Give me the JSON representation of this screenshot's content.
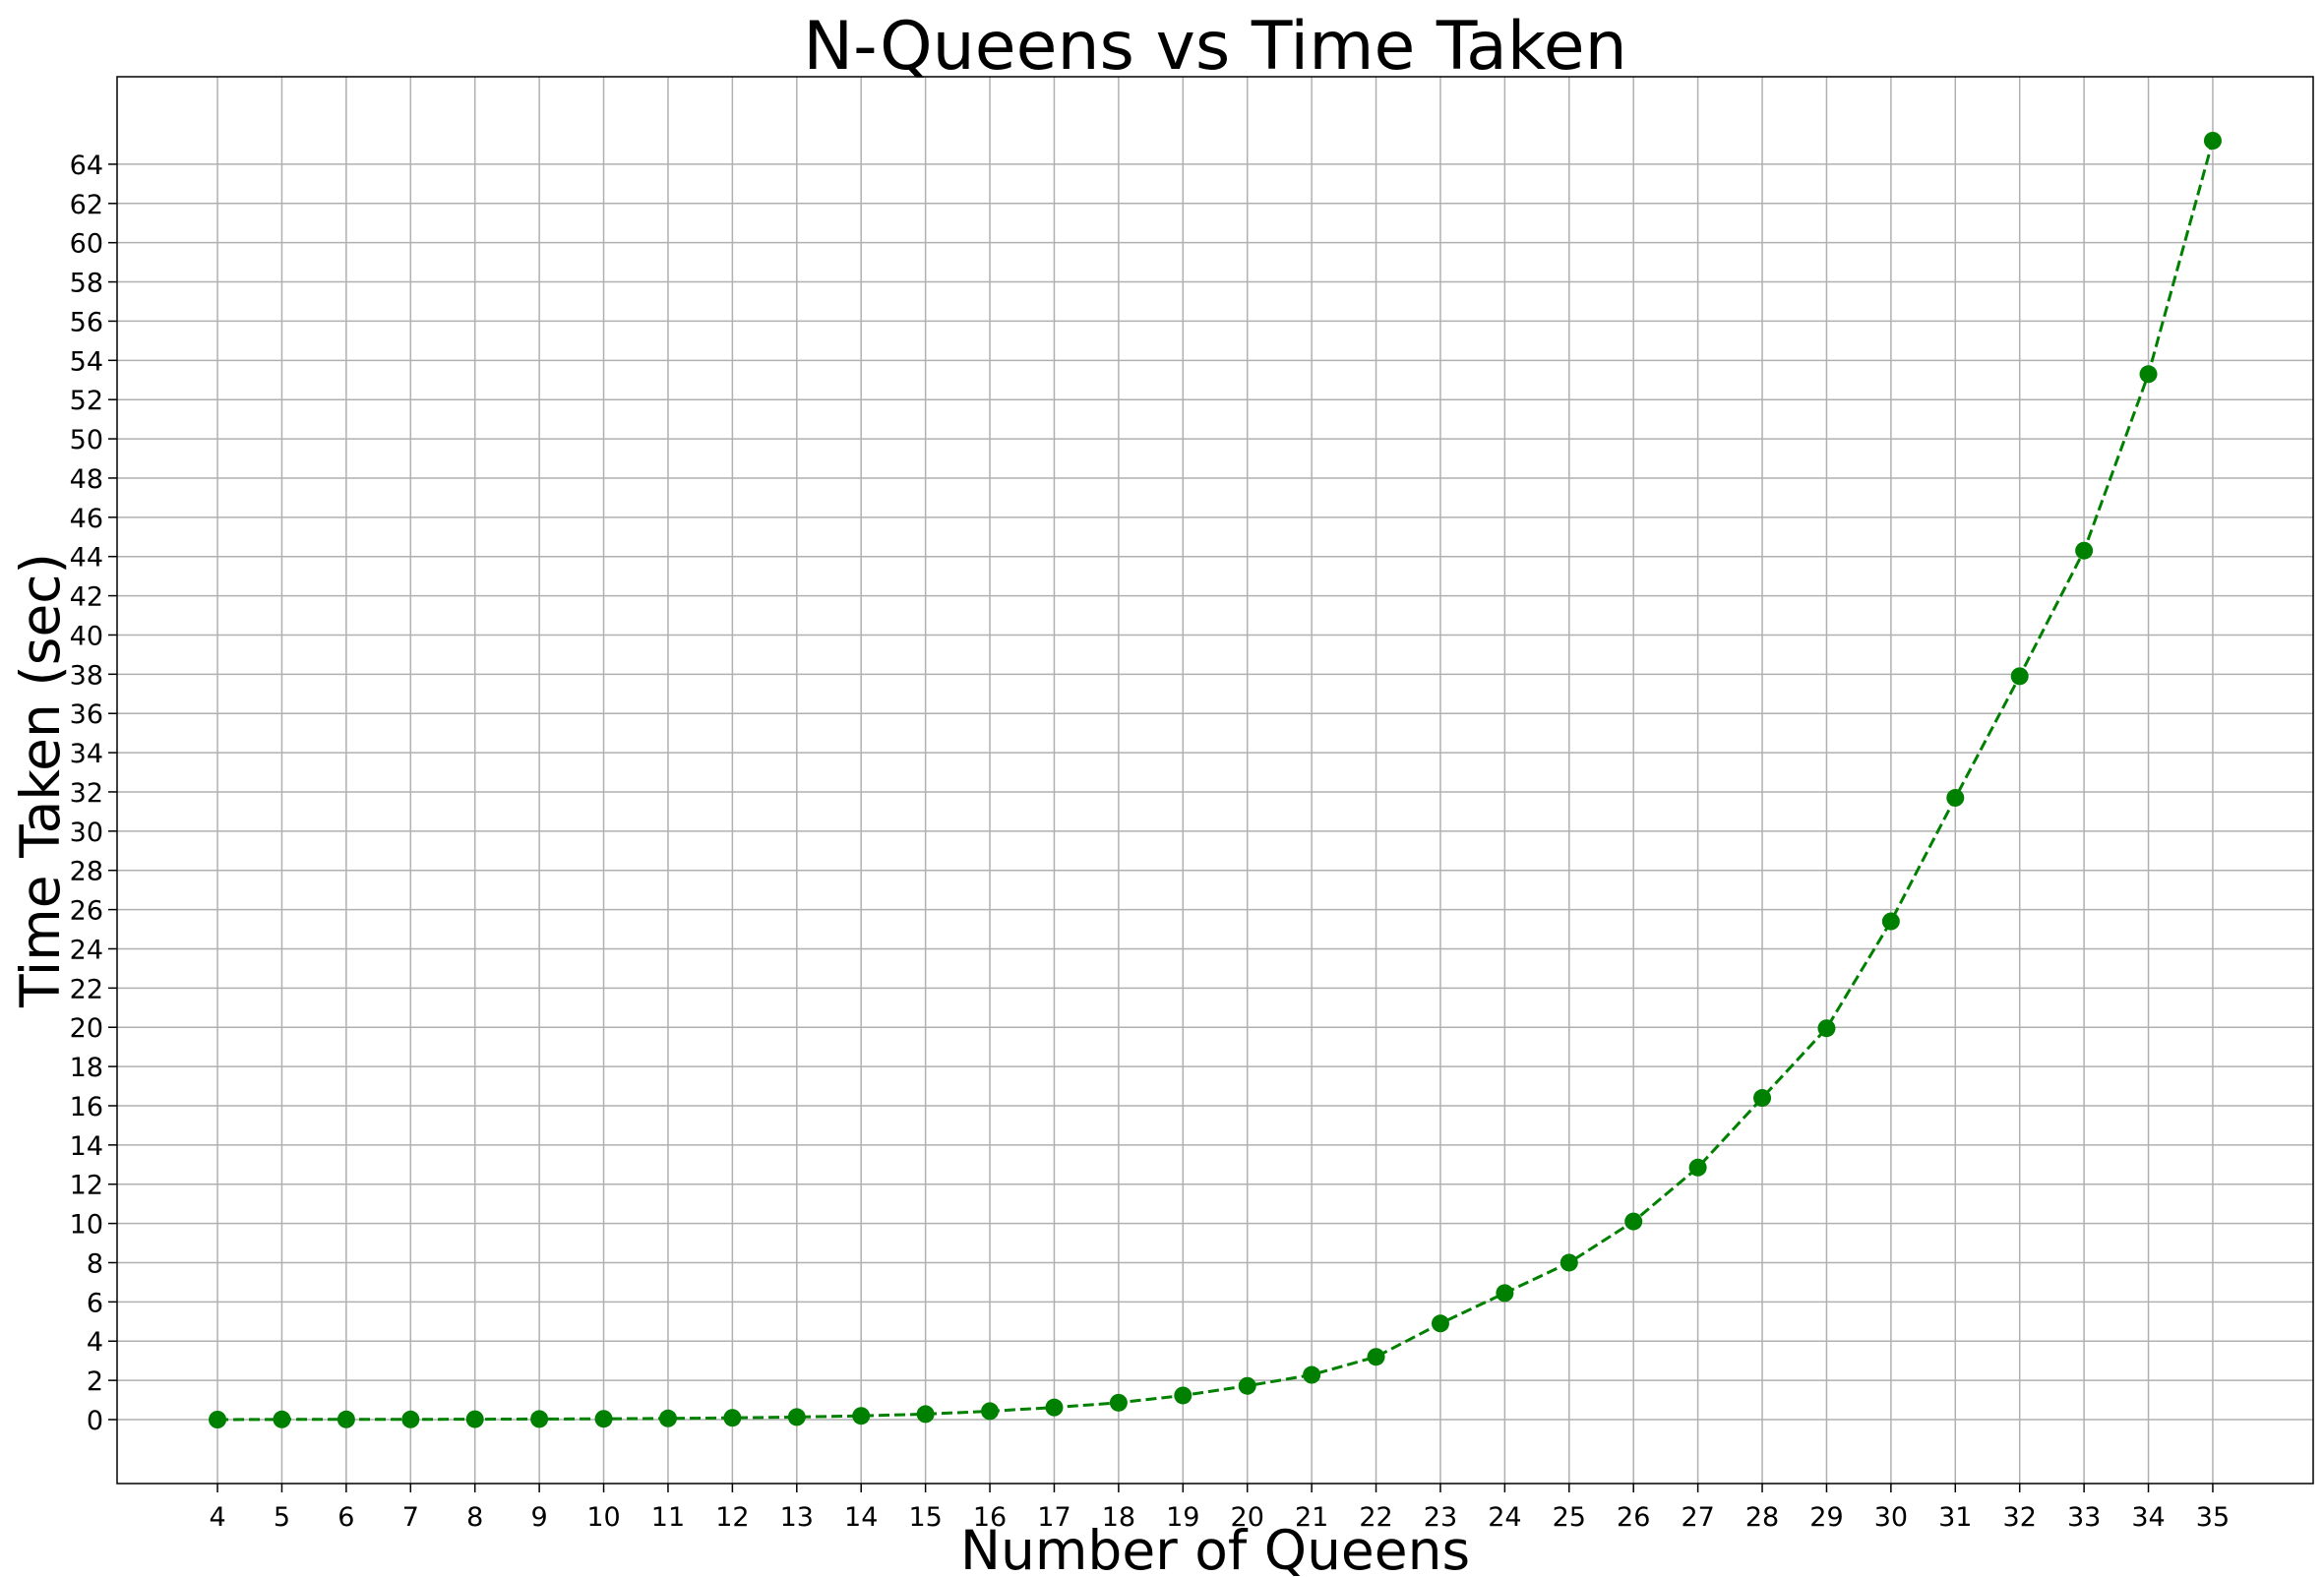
{
  "chart_data": {
    "type": "line",
    "title": "N-Queens vs Time Taken",
    "xlabel": "Number of Queens",
    "ylabel": "Time Taken (sec)",
    "x": [
      4,
      5,
      6,
      7,
      8,
      9,
      10,
      11,
      12,
      13,
      14,
      15,
      16,
      17,
      18,
      19,
      20,
      21,
      22,
      23,
      24,
      25,
      26,
      27,
      28,
      29,
      30,
      31,
      32,
      33,
      34,
      35
    ],
    "series": [
      {
        "values": [
          0,
          0.01,
          0.01,
          0.01,
          0.02,
          0.03,
          0.04,
          0.06,
          0.09,
          0.13,
          0.19,
          0.28,
          0.43,
          0.62,
          0.86,
          1.23,
          1.72,
          2.28,
          3.2,
          4.9,
          6.45,
          8.0,
          10.1,
          12.85,
          16.4,
          19.95,
          25.4,
          31.7,
          37.9,
          44.3,
          53.3,
          65.2
        ],
        "color": "#008000",
        "line_style": "dashed",
        "marker": "circle"
      }
    ],
    "x_ticks": [
      "4",
      "5",
      "6",
      "7",
      "8",
      "9",
      "10",
      "11",
      "12",
      "13",
      "14",
      "15",
      "16",
      "17",
      "18",
      "19",
      "20",
      "21",
      "22",
      "23",
      "24",
      "25",
      "26",
      "27",
      "28",
      "29",
      "30",
      "31",
      "32",
      "33",
      "34",
      "35"
    ],
    "y_ticks": [
      "0",
      "2",
      "4",
      "6",
      "8",
      "10",
      "12",
      "14",
      "16",
      "18",
      "20",
      "22",
      "24",
      "26",
      "28",
      "30",
      "32",
      "34",
      "36",
      "38",
      "40",
      "42",
      "44",
      "46",
      "48",
      "50",
      "52",
      "54",
      "56",
      "58",
      "60",
      "62",
      "64"
    ],
    "xlim": [
      2.44,
      36.56
    ],
    "ylim": [
      -3.26,
      68.46
    ],
    "grid": true,
    "legend": false
  }
}
